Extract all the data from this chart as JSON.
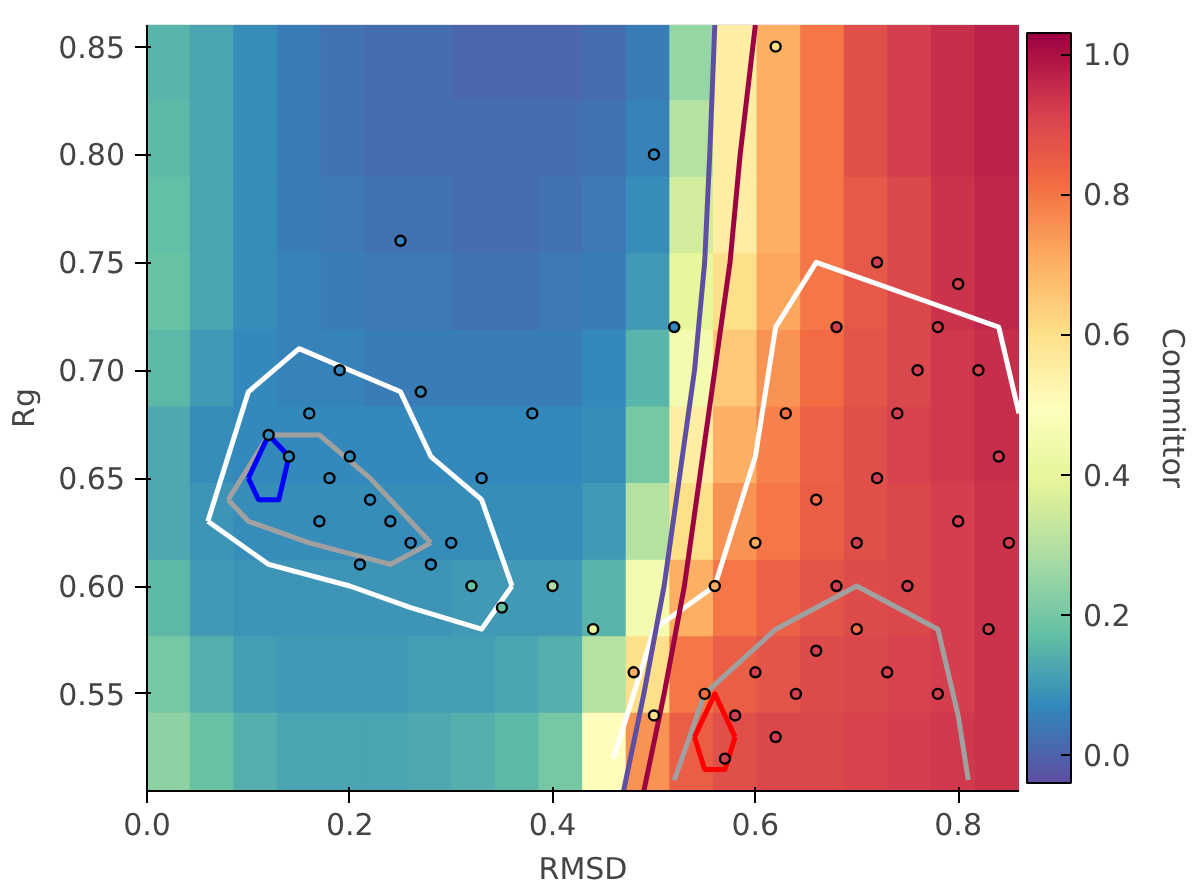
{
  "chart_data": {
    "type": "heatmap",
    "xlabel": "RMSD",
    "ylabel": "Rg",
    "clabel": "Committor",
    "xlim": [
      0,
      0.86
    ],
    "ylim": [
      0.505,
      0.86
    ],
    "xticks": [
      {
        "value": 0,
        "label": "0.0"
      },
      0.2,
      0.4,
      0.6,
      0.8
    ],
    "yticks": [
      0.55,
      {
        "value": 0.6,
        "label": "0.60"
      },
      0.65,
      {
        "value": 0.7,
        "label": "0.70"
      },
      0.75,
      {
        "value": 0.8,
        "label": "0.80"
      },
      0.85
    ],
    "clim": [
      -0.04,
      1.03
    ],
    "cticks": [
      {
        "value": 0,
        "label": "0.0"
      },
      0.2,
      0.4,
      0.6,
      0.8,
      {
        "value": 1,
        "label": "1.0"
      }
    ],
    "x": [
      0.0215,
      0.0645,
      0.1075,
      0.1505,
      0.1935,
      0.2365,
      0.2795,
      0.3225,
      0.3655,
      0.4085,
      0.4515,
      0.4945,
      0.5375,
      0.5805,
      0.6235,
      0.6665,
      0.7095,
      0.7525,
      0.7955,
      0.8385
    ],
    "y": [
      0.84225,
      0.80675,
      0.77125,
      0.73575,
      0.70025,
      0.66475,
      0.62925,
      0.59375,
      0.55825,
      0.52275
    ],
    "cells": [
      [
        0.15,
        0.12,
        0.08,
        0.05,
        0.03,
        0.02,
        0.02,
        0.01,
        0.01,
        0.01,
        0.02,
        0.05,
        0.25,
        0.55,
        0.7,
        0.8,
        0.88,
        0.92,
        0.95,
        0.97
      ],
      [
        0.16,
        0.12,
        0.08,
        0.05,
        0.03,
        0.02,
        0.02,
        0.02,
        0.02,
        0.02,
        0.03,
        0.06,
        0.3,
        0.55,
        0.7,
        0.8,
        0.88,
        0.92,
        0.95,
        0.97
      ],
      [
        0.17,
        0.12,
        0.08,
        0.05,
        0.04,
        0.03,
        0.03,
        0.02,
        0.02,
        0.03,
        0.04,
        0.08,
        0.35,
        0.55,
        0.7,
        0.8,
        0.86,
        0.9,
        0.94,
        0.96
      ],
      [
        0.18,
        0.12,
        0.08,
        0.06,
        0.05,
        0.04,
        0.04,
        0.03,
        0.03,
        0.04,
        0.05,
        0.1,
        0.4,
        0.6,
        0.72,
        0.8,
        0.86,
        0.9,
        0.94,
        0.96
      ],
      [
        0.16,
        0.1,
        0.07,
        0.06,
        0.06,
        0.05,
        0.05,
        0.05,
        0.05,
        0.05,
        0.07,
        0.15,
        0.45,
        0.65,
        0.75,
        0.82,
        0.87,
        0.9,
        0.93,
        0.95
      ],
      [
        0.13,
        0.08,
        0.07,
        0.07,
        0.07,
        0.07,
        0.07,
        0.07,
        0.07,
        0.07,
        0.08,
        0.2,
        0.55,
        0.7,
        0.78,
        0.84,
        0.88,
        0.91,
        0.93,
        0.95
      ],
      [
        0.13,
        0.09,
        0.08,
        0.08,
        0.08,
        0.08,
        0.08,
        0.08,
        0.08,
        0.08,
        0.1,
        0.3,
        0.6,
        0.75,
        0.8,
        0.85,
        0.88,
        0.9,
        0.92,
        0.94
      ],
      [
        0.16,
        0.1,
        0.09,
        0.09,
        0.09,
        0.09,
        0.09,
        0.1,
        0.1,
        0.1,
        0.15,
        0.45,
        0.7,
        0.8,
        0.84,
        0.87,
        0.89,
        0.9,
        0.92,
        0.94
      ],
      [
        0.2,
        0.14,
        0.11,
        0.1,
        0.1,
        0.1,
        0.11,
        0.11,
        0.12,
        0.14,
        0.3,
        0.6,
        0.8,
        0.85,
        0.87,
        0.89,
        0.9,
        0.91,
        0.92,
        0.94
      ],
      [
        0.24,
        0.18,
        0.14,
        0.12,
        0.12,
        0.12,
        0.13,
        0.14,
        0.16,
        0.2,
        0.5,
        0.75,
        0.85,
        0.88,
        0.9,
        0.9,
        0.91,
        0.92,
        0.93,
        0.94
      ]
    ],
    "series": [
      {
        "type": "line",
        "color": "#ffffff",
        "x": [
          0.06,
          0.1,
          0.15,
          0.2,
          0.25,
          0.28,
          0.33,
          0.36
        ],
        "values": [
          0.63,
          0.69,
          0.71,
          0.7,
          0.69,
          0.66,
          0.64,
          0.6
        ]
      },
      {
        "type": "line",
        "color": "#ffffff",
        "x": [
          0.06,
          0.12,
          0.2,
          0.26,
          0.33,
          0.36
        ],
        "values": [
          0.63,
          0.61,
          0.6,
          0.59,
          0.58,
          0.6
        ]
      },
      {
        "type": "line",
        "color": "#a0a0a0",
        "x": [
          0.08,
          0.12,
          0.17,
          0.22,
          0.28
        ],
        "values": [
          0.64,
          0.67,
          0.67,
          0.65,
          0.62
        ]
      },
      {
        "type": "line",
        "color": "#a0a0a0",
        "x": [
          0.08,
          0.1,
          0.16,
          0.24,
          0.28
        ],
        "values": [
          0.64,
          0.63,
          0.62,
          0.61,
          0.62
        ]
      },
      {
        "type": "line",
        "color": "#ffffff",
        "x": [
          0.46,
          0.5,
          0.56,
          0.6,
          0.62,
          0.66,
          0.72,
          0.78,
          0.84,
          0.86
        ],
        "values": [
          0.52,
          0.58,
          0.6,
          0.66,
          0.72,
          0.75,
          0.74,
          0.73,
          0.72,
          0.68
        ]
      },
      {
        "type": "line",
        "color": "#a0a0a0",
        "x": [
          0.52,
          0.55,
          0.62,
          0.7,
          0.78,
          0.8,
          0.81
        ],
        "values": [
          0.51,
          0.55,
          0.58,
          0.6,
          0.58,
          0.54,
          0.51
        ]
      },
      {
        "type": "line",
        "color": "#0000ff",
        "x": [
          0.1,
          0.12,
          0.14
        ],
        "values": [
          0.65,
          0.67,
          0.66
        ]
      },
      {
        "type": "line",
        "color": "#0000ff",
        "x": [
          0.1,
          0.11,
          0.13,
          0.14
        ],
        "values": [
          0.65,
          0.64,
          0.64,
          0.66
        ]
      },
      {
        "type": "line",
        "color": "#ff0000",
        "x": [
          0.54,
          0.56,
          0.58
        ],
        "values": [
          0.53,
          0.55,
          0.53
        ]
      },
      {
        "type": "line",
        "color": "#ff0000",
        "x": [
          0.54,
          0.55,
          0.57,
          0.58
        ],
        "values": [
          0.53,
          0.515,
          0.515,
          0.53
        ]
      },
      {
        "type": "line",
        "color": "#5e4fa2",
        "x": [
          0.47,
          0.49,
          0.51,
          0.525,
          0.54,
          0.55,
          0.555,
          0.56
        ],
        "values": [
          0.505,
          0.55,
          0.6,
          0.65,
          0.7,
          0.75,
          0.8,
          0.86
        ]
      },
      {
        "type": "line",
        "color": "#9e0142",
        "x": [
          0.49,
          0.51,
          0.53,
          0.545,
          0.56,
          0.575,
          0.585,
          0.6
        ],
        "values": [
          0.505,
          0.55,
          0.6,
          0.65,
          0.7,
          0.75,
          0.8,
          0.86
        ]
      },
      {
        "type": "scatter",
        "x": [
          0.12,
          0.14,
          0.16,
          0.18,
          0.2,
          0.17,
          0.22,
          0.24,
          0.26,
          0.28,
          0.3,
          0.32,
          0.35,
          0.25,
          0.38,
          0.27,
          0.21,
          0.19,
          0.33,
          0.5,
          0.52,
          0.44,
          0.4,
          0.55,
          0.58,
          0.6,
          0.62,
          0.64,
          0.66,
          0.68,
          0.7,
          0.72,
          0.74,
          0.76,
          0.78,
          0.8,
          0.82,
          0.84,
          0.66,
          0.7,
          0.75,
          0.8,
          0.73,
          0.6,
          0.63,
          0.68,
          0.72,
          0.85,
          0.56,
          0.78,
          0.83,
          0.62,
          0.57,
          0.5,
          0.48
        ],
        "values": [
          0.67,
          0.66,
          0.68,
          0.65,
          0.66,
          0.63,
          0.64,
          0.63,
          0.62,
          0.61,
          0.62,
          0.6,
          0.59,
          0.76,
          0.68,
          0.69,
          0.61,
          0.7,
          0.65,
          0.8,
          0.72,
          0.58,
          0.6,
          0.55,
          0.54,
          0.56,
          0.53,
          0.55,
          0.57,
          0.6,
          0.62,
          0.65,
          0.68,
          0.7,
          0.72,
          0.74,
          0.7,
          0.66,
          0.64,
          0.58,
          0.6,
          0.63,
          0.56,
          0.62,
          0.68,
          0.72,
          0.75,
          0.62,
          0.6,
          0.55,
          0.58,
          0.85,
          0.52,
          0.54,
          0.56
        ],
        "colors": [
          "#3288bd",
          "#3288bd",
          "#3288bd",
          "#3288bd",
          "#3288bd",
          "#3288bd",
          "#3288bd",
          "#3288bd",
          "#3288bd",
          "#3288bd",
          "#3288bd",
          "#66c2a5",
          "#66c2a5",
          "#3288bd",
          "#3288bd",
          "#3288bd",
          "#3288bd",
          "#3288bd",
          "#3288bd",
          "#3288bd",
          "#3288bd",
          "#e6f598",
          "#abdda4",
          "#f46d43",
          "#d53e4f",
          "#d53e4f",
          "#d53e4f",
          "#d53e4f",
          "#d53e4f",
          "#d53e4f",
          "#d53e4f",
          "#d53e4f",
          "#d53e4f",
          "#d53e4f",
          "#d53e4f",
          "#d53e4f",
          "#d53e4f",
          "#d53e4f",
          "#f46d43",
          "#f46d43",
          "#d53e4f",
          "#d53e4f",
          "#d53e4f",
          "#fdae61",
          "#f46d43",
          "#d53e4f",
          "#d53e4f",
          "#d53e4f",
          "#fdae61",
          "#d53e4f",
          "#d53e4f",
          "#fee08b",
          "#d53e4f",
          "#fee08b",
          "#fdae61"
        ]
      }
    ]
  }
}
